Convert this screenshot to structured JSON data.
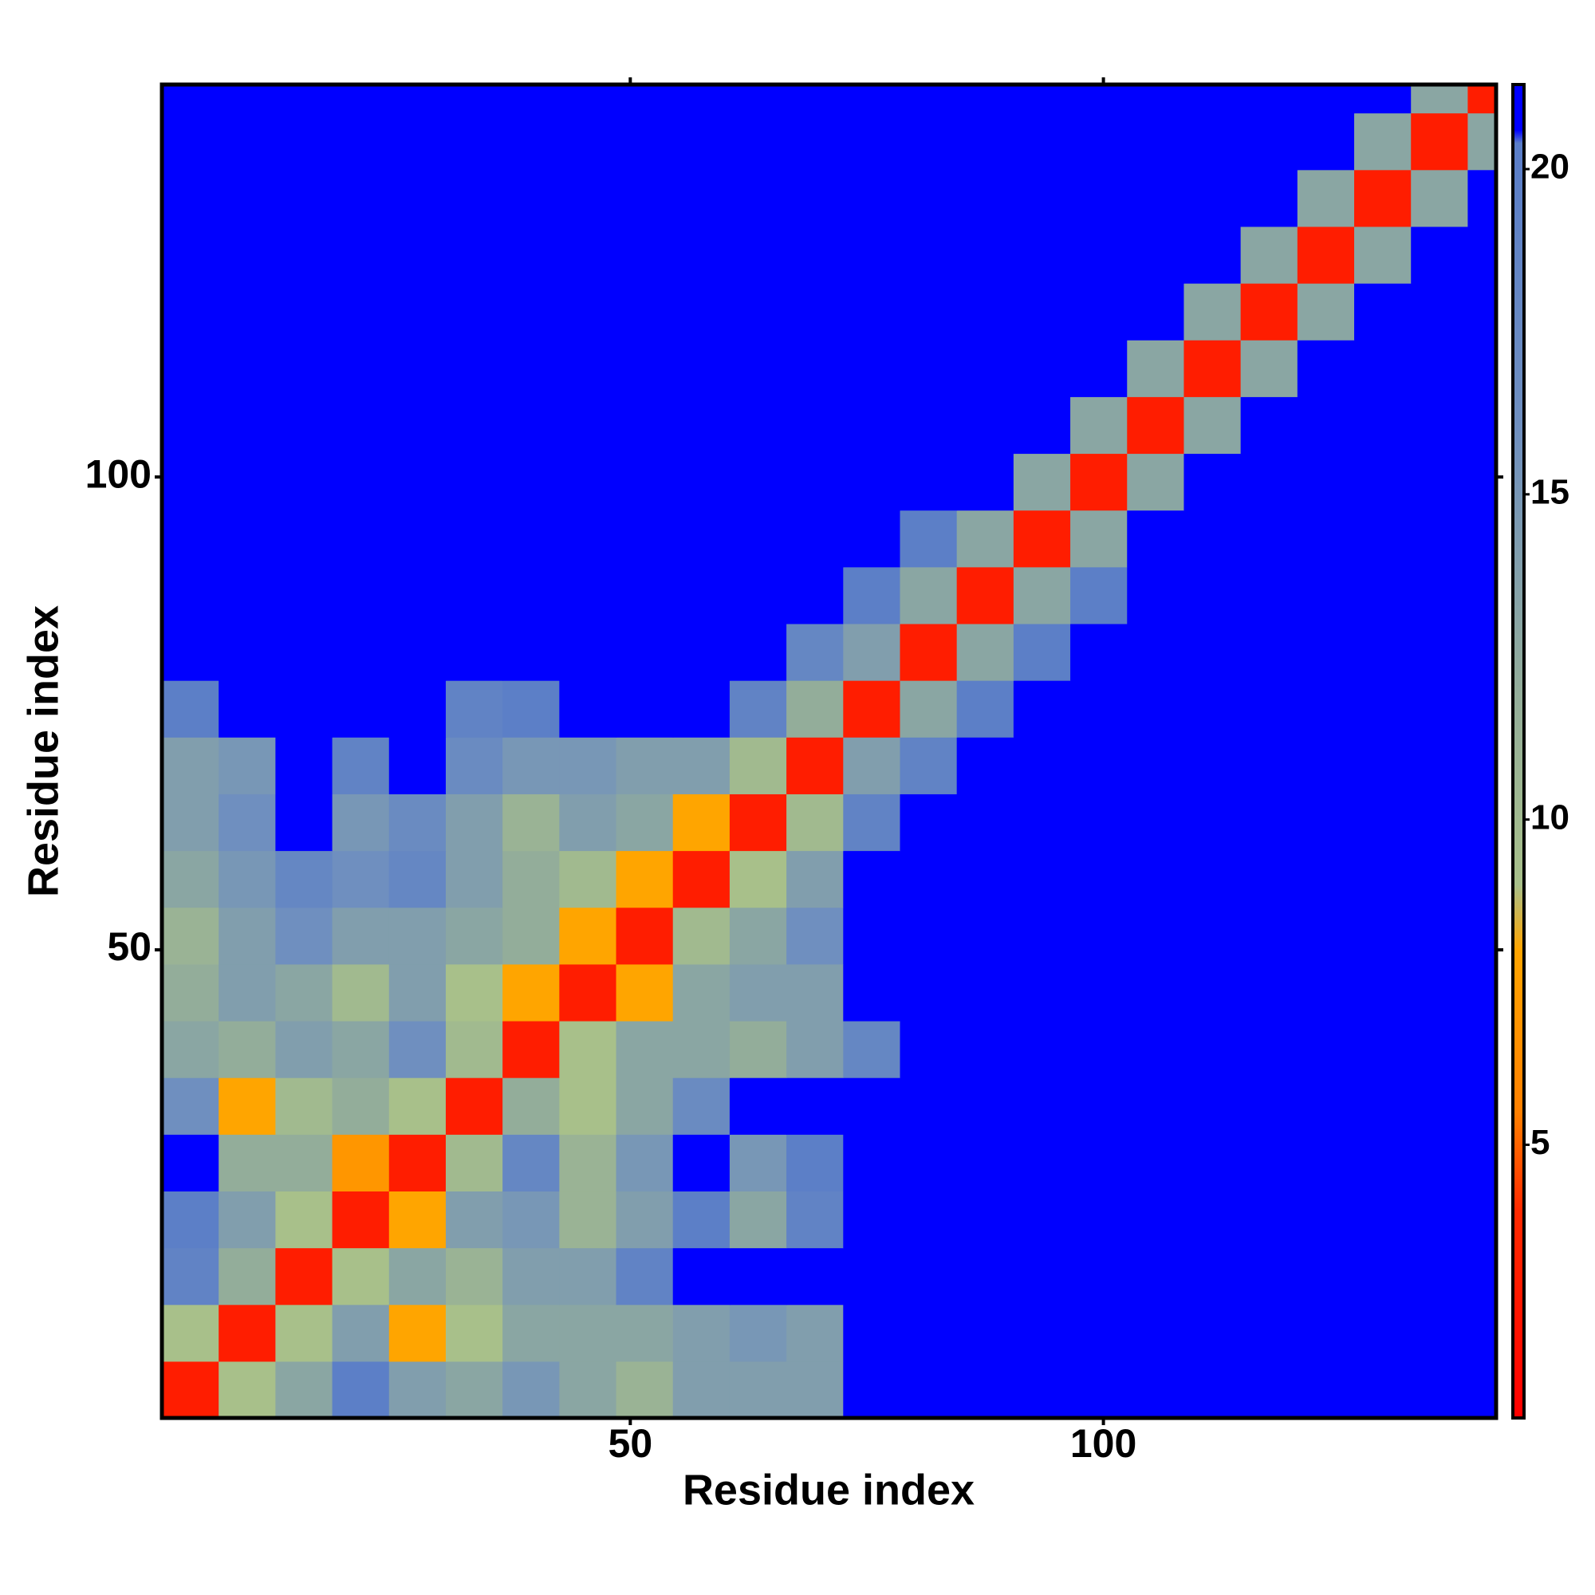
{
  "chart_data": {
    "type": "heatmap",
    "xlabel": "Residue index",
    "ylabel": "Residue index",
    "xlim": [
      0.5,
      141.5
    ],
    "ylim": [
      0.5,
      141.5
    ],
    "xticks": [
      50,
      100
    ],
    "yticks": [
      50,
      100
    ],
    "xbins": [
      0.5,
      6.5,
      12.5,
      18.5,
      24.5,
      30.5,
      36.5,
      42.5,
      48.5,
      54.5,
      60.5,
      66.5,
      72.5,
      78.5,
      84.5,
      90.5,
      96.5,
      102.5,
      108.5,
      114.5,
      120.5,
      126.5,
      132.5,
      138.5,
      141.5
    ],
    "ybins": [
      0.5,
      6.5,
      12.5,
      18.5,
      24.5,
      30.5,
      36.5,
      42.5,
      48.5,
      54.5,
      60.5,
      66.5,
      72.5,
      78.5,
      84.5,
      90.5,
      96.5,
      102.5,
      108.5,
      114.5,
      120.5,
      126.5,
      132.5,
      138.5,
      141.5
    ],
    "z": [
      [
        3,
        9,
        13,
        20,
        14,
        13,
        15,
        13,
        11,
        14,
        14,
        14,
        22,
        22,
        22,
        22,
        22,
        22,
        22,
        22,
        22,
        22,
        22,
        22
      ],
      [
        9,
        3,
        9,
        14,
        8,
        9,
        13,
        13,
        13,
        14,
        15,
        14,
        22,
        22,
        22,
        22,
        22,
        22,
        22,
        22,
        22,
        22,
        22,
        22
      ],
      [
        19,
        12,
        3,
        9,
        13,
        11,
        14,
        14,
        19,
        21,
        22,
        22,
        22,
        22,
        22,
        22,
        22,
        22,
        22,
        22,
        22,
        22,
        22,
        22
      ],
      [
        20,
        14,
        9,
        3,
        8,
        14,
        15,
        11,
        14,
        20,
        13,
        19,
        22,
        22,
        22,
        22,
        22,
        22,
        22,
        22,
        22,
        22,
        22,
        22
      ],
      [
        21,
        12,
        12,
        7,
        3,
        10,
        18,
        11,
        15,
        21,
        15,
        20,
        22,
        22,
        22,
        22,
        22,
        22,
        22,
        22,
        22,
        22,
        22,
        22
      ],
      [
        16,
        8,
        10,
        12,
        9,
        3,
        12,
        9,
        13,
        17,
        21,
        22,
        22,
        22,
        22,
        22,
        22,
        22,
        22,
        22,
        22,
        22,
        22,
        22
      ],
      [
        13,
        12,
        14,
        13,
        16,
        10,
        3,
        9,
        13,
        13,
        12,
        14,
        18,
        22,
        22,
        22,
        22,
        22,
        22,
        22,
        22,
        22,
        22,
        22
      ],
      [
        12,
        14,
        13,
        10,
        14,
        9,
        8,
        3,
        8,
        13,
        14,
        14,
        22,
        22,
        22,
        22,
        22,
        22,
        22,
        22,
        22,
        22,
        22,
        22
      ],
      [
        11,
        14,
        16,
        14,
        14,
        13,
        12,
        8,
        3,
        10,
        13,
        16,
        22,
        22,
        22,
        22,
        22,
        22,
        22,
        22,
        22,
        22,
        22,
        22
      ],
      [
        13,
        15,
        18,
        16,
        18,
        14,
        12,
        10,
        8,
        3,
        9,
        14,
        22,
        22,
        22,
        22,
        22,
        22,
        22,
        22,
        22,
        22,
        22,
        22
      ],
      [
        14,
        16,
        21,
        15,
        17,
        14,
        11,
        14,
        13,
        8,
        3,
        10,
        19,
        22,
        22,
        22,
        22,
        22,
        22,
        22,
        22,
        22,
        22,
        22
      ],
      [
        14,
        15,
        22,
        19,
        22,
        17,
        15,
        15,
        14,
        14,
        10,
        3,
        14,
        19,
        22,
        22,
        22,
        22,
        22,
        22,
        22,
        22,
        22,
        22
      ],
      [
        20,
        22,
        22,
        22,
        22,
        19,
        20,
        22,
        22,
        22,
        19,
        12,
        3,
        13,
        20,
        22,
        22,
        22,
        22,
        22,
        22,
        22,
        22,
        22
      ],
      [
        22,
        22,
        22,
        22,
        22,
        22,
        22,
        22,
        22,
        22,
        22,
        18,
        14,
        3,
        13,
        20,
        22,
        22,
        22,
        22,
        22,
        22,
        22,
        22
      ],
      [
        22,
        22,
        22,
        22,
        22,
        22,
        22,
        22,
        22,
        22,
        22,
        22,
        20,
        13,
        3,
        13,
        20,
        22,
        22,
        22,
        22,
        22,
        22,
        22
      ],
      [
        22,
        22,
        22,
        22,
        22,
        22,
        22,
        22,
        22,
        22,
        22,
        22,
        22,
        20,
        13,
        3,
        13,
        22,
        22,
        22,
        22,
        22,
        22,
        22
      ],
      [
        22,
        22,
        22,
        22,
        22,
        22,
        22,
        22,
        22,
        22,
        22,
        22,
        22,
        22,
        22,
        13,
        3,
        13,
        22,
        22,
        22,
        22,
        22,
        22
      ],
      [
        22,
        22,
        22,
        22,
        22,
        22,
        22,
        22,
        22,
        22,
        22,
        22,
        22,
        22,
        22,
        22,
        13,
        3,
        13,
        22,
        22,
        22,
        22,
        22
      ],
      [
        22,
        22,
        22,
        22,
        22,
        22,
        22,
        22,
        22,
        22,
        22,
        22,
        22,
        22,
        22,
        22,
        22,
        13,
        3,
        13,
        22,
        22,
        22,
        22
      ],
      [
        22,
        22,
        22,
        22,
        22,
        22,
        22,
        22,
        22,
        22,
        22,
        22,
        22,
        22,
        22,
        22,
        22,
        22,
        13,
        3,
        13,
        22,
        22,
        22
      ],
      [
        22,
        22,
        22,
        22,
        22,
        22,
        22,
        22,
        22,
        22,
        22,
        22,
        22,
        22,
        22,
        22,
        22,
        22,
        22,
        13,
        3,
        13,
        22,
        22
      ],
      [
        22,
        22,
        22,
        22,
        22,
        22,
        22,
        22,
        22,
        22,
        22,
        22,
        22,
        22,
        22,
        22,
        22,
        22,
        22,
        22,
        13,
        3,
        13,
        22
      ],
      [
        22,
        22,
        22,
        22,
        22,
        22,
        22,
        22,
        22,
        22,
        22,
        22,
        22,
        22,
        22,
        22,
        22,
        22,
        22,
        22,
        22,
        13,
        3,
        13
      ],
      [
        22,
        22,
        22,
        22,
        22,
        22,
        22,
        22,
        22,
        22,
        22,
        22,
        22,
        22,
        22,
        22,
        22,
        22,
        22,
        22,
        22,
        22,
        13,
        3
      ]
    ],
    "zlim": [
      0.8,
      21.3
    ],
    "zticks": [
      5,
      10,
      15,
      20
    ],
    "colorscale": [
      [
        0.8,
        "#ff0000"
      ],
      [
        4,
        "#ff2a00"
      ],
      [
        5.5,
        "#ff8000"
      ],
      [
        8,
        "#ffa500"
      ],
      [
        9,
        "#a8c08a"
      ],
      [
        12,
        "#93ad9a"
      ],
      [
        16,
        "#6f8fbf"
      ],
      [
        20.4,
        "#5a7dc8"
      ],
      [
        20.6,
        "#0000ff"
      ],
      [
        21.3,
        "#0000ff"
      ]
    ]
  }
}
